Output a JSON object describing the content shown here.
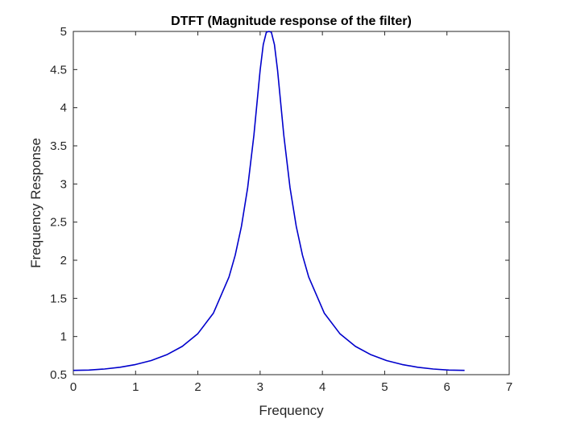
{
  "chart_data": {
    "type": "line",
    "title": "DTFT (Magnitude response of the filter)",
    "xlabel": "Frequency",
    "ylabel": "Frequency Response",
    "xlim": [
      0,
      7
    ],
    "ylim": [
      0.5,
      5
    ],
    "xticks": [
      "0",
      "1",
      "2",
      "3",
      "4",
      "5",
      "6",
      "7"
    ],
    "yticks": [
      "0.5",
      "1",
      "1.5",
      "2",
      "2.5",
      "3",
      "3.5",
      "4",
      "4.5",
      "5"
    ],
    "grid": false,
    "series": [
      {
        "color": "#0000cc",
        "x": [
          0,
          0.25,
          0.5,
          0.75,
          1.0,
          1.25,
          1.5,
          1.75,
          2.0,
          2.25,
          2.5,
          2.6,
          2.7,
          2.8,
          2.9,
          3.0,
          3.05,
          3.1,
          3.1416,
          3.18,
          3.23,
          3.28,
          3.38,
          3.48,
          3.58,
          3.68,
          3.78,
          4.03,
          4.28,
          4.53,
          4.78,
          5.03,
          5.28,
          5.53,
          5.78,
          6.03,
          6.2832
        ],
        "y": [
          0.556,
          0.56,
          0.574,
          0.597,
          0.633,
          0.685,
          0.761,
          0.871,
          1.038,
          1.307,
          1.78,
          2.067,
          2.445,
          2.952,
          3.639,
          4.491,
          4.826,
          4.99,
          5.0,
          4.99,
          4.826,
          4.491,
          3.639,
          2.952,
          2.445,
          2.067,
          1.78,
          1.307,
          1.038,
          0.871,
          0.761,
          0.685,
          0.633,
          0.597,
          0.574,
          0.56,
          0.556
        ]
      }
    ]
  }
}
